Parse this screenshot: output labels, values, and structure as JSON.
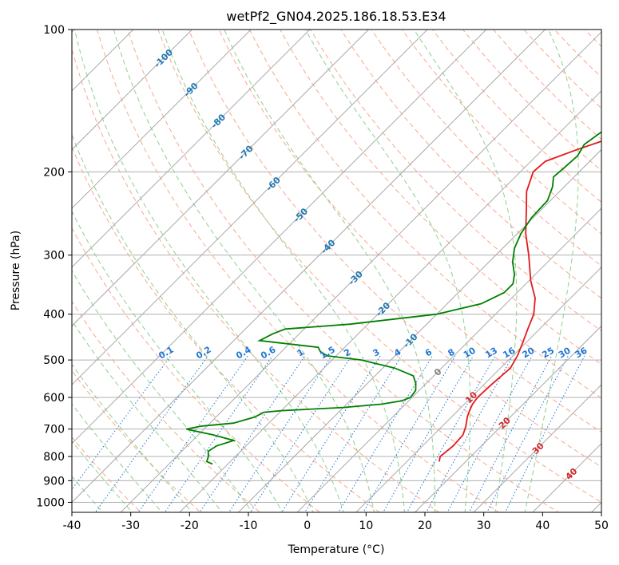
{
  "chart_data": {
    "type": "line",
    "title": "wetPf2_GN04.2025.186.18.53.E34",
    "xlabel": "Temperature (°C)",
    "ylabel": "Pressure (hPa)",
    "xlim": [
      -40,
      50
    ],
    "ylim": [
      1050,
      100
    ],
    "y_scale": "log",
    "x_ticks": [
      "-40",
      "-30",
      "-20",
      "-10",
      "0",
      "10",
      "20",
      "30",
      "40",
      "50"
    ],
    "y_ticks": [
      "100",
      "200",
      "300",
      "400",
      "500",
      "600",
      "700",
      "800",
      "900",
      "1000"
    ],
    "grid": true,
    "skew_isotherms": true,
    "colors": {
      "temperature": "#e41a1c",
      "dewpoint": "#008000",
      "isotherm": "#7f7f7f",
      "dry_adiabat": "#f7a98c",
      "moist_adiabat": "#8fcf8f",
      "mixing_ratio": "#1f77d4",
      "isotherm_label_neg": "#1f78b4",
      "isotherm_label_pos": "#d62728",
      "isotherm_label_zero": "#808080"
    },
    "isotherm_labels": [
      {
        "text": "-100",
        "t": -100
      },
      {
        "text": "-90",
        "t": -90
      },
      {
        "text": "-80",
        "t": -80
      },
      {
        "text": "-70",
        "t": -70
      },
      {
        "text": "-60",
        "t": -60
      },
      {
        "text": "-50",
        "t": -50
      },
      {
        "text": "-40",
        "t": -40
      },
      {
        "text": "-30",
        "t": -30
      },
      {
        "text": "-20",
        "t": -20
      },
      {
        "text": "-10",
        "t": -10
      },
      {
        "text": "0",
        "t": 0
      },
      {
        "text": "10",
        "t": 10
      },
      {
        "text": "20",
        "t": 20
      },
      {
        "text": "30",
        "t": 30
      },
      {
        "text": "40",
        "t": 40
      }
    ],
    "mixing_ratio_labels": [
      "0.1",
      "0.2",
      "0.4",
      "0.6",
      "1",
      "1.5",
      "2",
      "3",
      "4",
      "6",
      "8",
      "10",
      "13",
      "16",
      "20",
      "25",
      "30",
      "36"
    ],
    "series": [
      {
        "key": "temperature",
        "points": [
          [
            820,
            15.5
          ],
          [
            800,
            14.8
          ],
          [
            760,
            15.2
          ],
          [
            720,
            15.0
          ],
          [
            690,
            14.0
          ],
          [
            660,
            12.7
          ],
          [
            640,
            12.0
          ],
          [
            620,
            11.4
          ],
          [
            600,
            11.1
          ],
          [
            560,
            11.3
          ],
          [
            520,
            11.7
          ],
          [
            490,
            10.8
          ],
          [
            460,
            9.5
          ],
          [
            430,
            8.0
          ],
          [
            400,
            6.5
          ],
          [
            370,
            4.0
          ],
          [
            340,
            0.3
          ],
          [
            300,
            -4.4
          ],
          [
            270,
            -8.6
          ],
          [
            240,
            -12.6
          ],
          [
            220,
            -15.6
          ],
          [
            200,
            -17.8
          ],
          [
            190,
            -17.5
          ],
          [
            180,
            -14.3
          ],
          [
            170,
            -10.5
          ],
          [
            160,
            -7.5
          ],
          [
            150,
            -4.5
          ],
          [
            140,
            -1.0
          ],
          [
            130,
            0.6
          ],
          [
            120,
            2.0
          ],
          [
            110,
            3.4
          ],
          [
            100,
            5.6
          ]
        ]
      },
      {
        "key": "dewpoint",
        "points": [
          [
            830,
            -22.6
          ],
          [
            820,
            -24.0
          ],
          [
            800,
            -24.6
          ],
          [
            780,
            -25.5
          ],
          [
            760,
            -25.0
          ],
          [
            740,
            -23.0
          ],
          [
            720,
            -27.5
          ],
          [
            700,
            -33.0
          ],
          [
            690,
            -31.0
          ],
          [
            680,
            -26.0
          ],
          [
            660,
            -23.4
          ],
          [
            645,
            -22.7
          ],
          [
            640,
            -20.0
          ],
          [
            630,
            -10.0
          ],
          [
            620,
            -4.0
          ],
          [
            610,
            -1.2
          ],
          [
            600,
            -0.3
          ],
          [
            580,
            -0.6
          ],
          [
            560,
            -1.8
          ],
          [
            540,
            -3.5
          ],
          [
            520,
            -8.0
          ],
          [
            500,
            -15.0
          ],
          [
            490,
            -21.5
          ],
          [
            480,
            -23.4
          ],
          [
            470,
            -24.5
          ],
          [
            455,
            -35.6
          ],
          [
            440,
            -34.5
          ],
          [
            430,
            -33.2
          ],
          [
            420,
            -23.0
          ],
          [
            400,
            -10.0
          ],
          [
            380,
            -4.2
          ],
          [
            360,
            -2.2
          ],
          [
            345,
            -2.2
          ],
          [
            330,
            -3.5
          ],
          [
            310,
            -6.0
          ],
          [
            290,
            -8.0
          ],
          [
            270,
            -9.4
          ],
          [
            250,
            -10.3
          ],
          [
            230,
            -10.5
          ],
          [
            215,
            -12.0
          ],
          [
            205,
            -13.5
          ],
          [
            195,
            -13.2
          ],
          [
            185,
            -13.0
          ],
          [
            175,
            -13.8
          ],
          [
            165,
            -13.0
          ],
          [
            155,
            -11.5
          ],
          [
            145,
            -10.7
          ],
          [
            135,
            -9.2
          ],
          [
            125,
            -6.5
          ],
          [
            115,
            -3.8
          ],
          [
            108,
            -2.2
          ],
          [
            100,
            -1.1
          ]
        ]
      }
    ]
  }
}
